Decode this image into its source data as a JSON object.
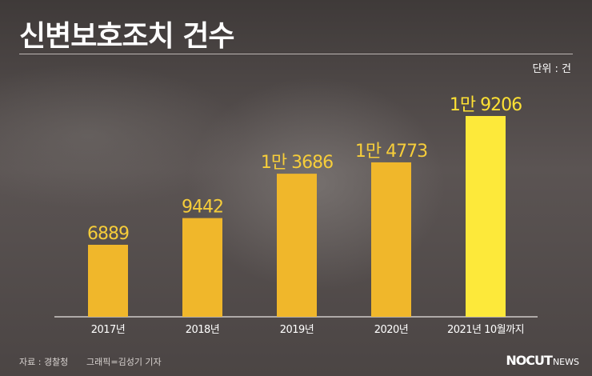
{
  "header": {
    "title": "신변보호조치 건수",
    "unit": "단위 : 건"
  },
  "footer": {
    "source": "자료 : 경찰청",
    "graphic": "그래픽=김성기 기자",
    "logo_main": "NOCUT",
    "logo_sub": "NEWS"
  },
  "colors": {
    "bar": "#F0B72B",
    "bar_highlight": "#FDE93A",
    "value_label": "#F6CD3A",
    "value_label_highlight": "#FFE234",
    "axis": "#e8e4e1"
  },
  "chart_data": {
    "type": "bar",
    "categories": [
      "2017년",
      "2018년",
      "2019년",
      "2020년",
      "2021년 10월까지"
    ],
    "values": [
      6889,
      9442,
      13686,
      14773,
      19206
    ],
    "value_labels": [
      "6889",
      "9442",
      "1만 3686",
      "1만 4773",
      "1만 9206"
    ],
    "highlight_index": 4,
    "ylabel": "",
    "xlabel": "",
    "grid": false
  }
}
